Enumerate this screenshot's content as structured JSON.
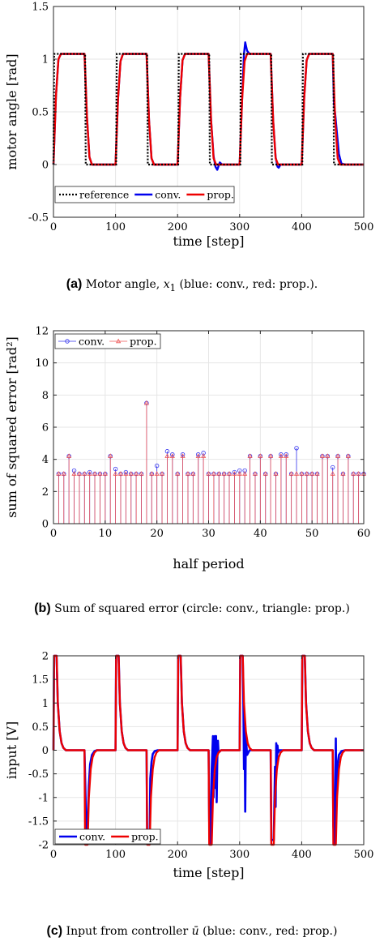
{
  "charts": [
    {
      "id": "a",
      "chart_data": {
        "type": "line",
        "xlabel": "time [step]",
        "ylabel": "motor angle [rad]",
        "xlim": [
          0,
          500
        ],
        "ylim": [
          -0.5,
          1.5
        ],
        "xticks": [
          0,
          100,
          200,
          300,
          400,
          500
        ],
        "yticks": [
          -0.5,
          0,
          0.5,
          1,
          1.5
        ],
        "grid": true,
        "legend_position": "bottom-left",
        "series": [
          {
            "name": "reference",
            "color": "#000000",
            "style": "dotted",
            "x": [
              0,
              1,
              2,
              51,
              52,
              101,
              102,
              151,
              152,
              201,
              202,
              251,
              252,
              301,
              302,
              351,
              352,
              401,
              402,
              451,
              452,
              500
            ],
            "y": [
              0,
              1.05,
              1.05,
              1.05,
              0,
              0,
              1.05,
              1.05,
              0,
              0,
              1.05,
              1.05,
              0,
              0,
              1.05,
              1.05,
              0,
              0,
              1.05,
              1.05,
              0,
              0
            ]
          },
          {
            "name": "conv.",
            "color": "#0000ee",
            "style": "solid",
            "x": [
              0,
              4,
              8,
              12,
              50,
              54,
              58,
              62,
              70,
              100,
              104,
              108,
              112,
              150,
              154,
              158,
              162,
              200,
              204,
              208,
              212,
              250,
              254,
              258,
              261,
              264,
              268,
              272,
              300,
              304,
              307,
              309,
              312,
              316,
              350,
              354,
              358,
              361,
              363,
              366,
              400,
              404,
              408,
              412,
              450,
              452,
              454,
              456,
              460,
              464,
              470,
              500
            ],
            "y": [
              0,
              0.65,
              1.0,
              1.05,
              1.05,
              0.45,
              0.07,
              0,
              0,
              0,
              0.62,
              0.98,
              1.05,
              1.05,
              0.42,
              0.06,
              0,
              0,
              0.63,
              0.99,
              1.05,
              1.05,
              0.42,
              0.08,
              -0.02,
              -0.05,
              0.02,
              0,
              0,
              0.62,
              1.05,
              1.16,
              1.08,
              1.05,
              1.05,
              0.42,
              0.07,
              -0.02,
              -0.03,
              0,
              0,
              0.63,
              0.99,
              1.05,
              1.05,
              0.58,
              0.48,
              0.35,
              0.1,
              0.01,
              0,
              0
            ]
          },
          {
            "name": "prop.",
            "color": "#ee0000",
            "style": "solid",
            "x": [
              0,
              4,
              8,
              12,
              50,
              54,
              58,
              62,
              70,
              100,
              104,
              108,
              112,
              150,
              154,
              158,
              162,
              200,
              204,
              208,
              212,
              250,
              254,
              258,
              262,
              300,
              304,
              308,
              312,
              350,
              354,
              358,
              362,
              400,
              404,
              408,
              412,
              450,
              454,
              458,
              462,
              500
            ],
            "y": [
              0,
              0.65,
              1.0,
              1.05,
              1.05,
              0.45,
              0.07,
              0,
              0,
              0,
              0.62,
              0.98,
              1.05,
              1.05,
              0.42,
              0.06,
              0,
              0,
              0.63,
              0.99,
              1.05,
              1.05,
              0.42,
              0.06,
              0,
              0,
              0.62,
              0.98,
              1.05,
              1.05,
              0.42,
              0.06,
              0,
              0,
              0.63,
              0.99,
              1.05,
              1.05,
              0.42,
              0.06,
              0,
              0
            ]
          }
        ]
      },
      "caption": {
        "label": "(a)",
        "text_before": "Motor angle,",
        "math_var": "x",
        "math_sub": "1",
        "text_after": "(blue: conv., red: prop.)."
      }
    },
    {
      "id": "b",
      "chart_data": {
        "type": "stem",
        "xlabel": "half period",
        "ylabel": "sum of squared error [rad²]",
        "xlim": [
          0,
          60
        ],
        "ylim": [
          0,
          12
        ],
        "xticks": [
          0,
          10,
          20,
          30,
          40,
          50,
          60
        ],
        "yticks": [
          0,
          2,
          4,
          6,
          8,
          10,
          12
        ],
        "grid": true,
        "legend_position": "top-left",
        "x": [
          1,
          2,
          3,
          4,
          5,
          6,
          7,
          8,
          9,
          10,
          11,
          12,
          13,
          14,
          15,
          16,
          17,
          18,
          19,
          20,
          21,
          22,
          23,
          24,
          25,
          26,
          27,
          28,
          29,
          30,
          31,
          32,
          33,
          34,
          35,
          36,
          37,
          38,
          39,
          40,
          41,
          42,
          43,
          44,
          45,
          46,
          47,
          48,
          49,
          50,
          51,
          52,
          53,
          54,
          55,
          56,
          57,
          58,
          59,
          60
        ],
        "series": [
          {
            "name": "conv.",
            "color": "#3333ee",
            "marker": "circle",
            "values": [
              3.1,
              3.1,
              4.2,
              3.3,
              3.1,
              3.1,
              3.2,
              3.1,
              3.1,
              3.1,
              4.2,
              3.4,
              3.1,
              3.2,
              3.1,
              3.1,
              3.1,
              7.5,
              3.1,
              3.6,
              3.1,
              4.5,
              4.3,
              3.1,
              4.3,
              3.1,
              3.1,
              4.3,
              4.4,
              3.1,
              3.1,
              3.1,
              3.1,
              3.1,
              3.2,
              3.3,
              3.3,
              4.2,
              3.1,
              4.2,
              3.1,
              4.2,
              3.1,
              4.3,
              4.3,
              3.1,
              4.7,
              3.1,
              3.1,
              3.1,
              3.1,
              4.2,
              4.2,
              3.5,
              4.2,
              3.1,
              4.2,
              3.1,
              3.1,
              3.1
            ]
          },
          {
            "name": "prop.",
            "color": "#ee5555",
            "marker": "triangle",
            "values": [
              3.1,
              3.1,
              4.2,
              3.1,
              3.1,
              3.1,
              3.1,
              3.1,
              3.1,
              3.1,
              4.2,
              3.1,
              3.1,
              3.1,
              3.1,
              3.1,
              3.1,
              7.5,
              3.1,
              3.1,
              3.1,
              4.2,
              4.2,
              3.1,
              4.2,
              3.1,
              3.1,
              4.2,
              4.2,
              3.1,
              3.1,
              3.1,
              3.1,
              3.1,
              3.1,
              3.1,
              3.1,
              4.2,
              3.1,
              4.2,
              3.1,
              4.2,
              3.1,
              4.2,
              4.2,
              3.1,
              3.1,
              3.1,
              3.1,
              3.1,
              3.1,
              4.2,
              4.2,
              3.1,
              4.2,
              3.1,
              4.2,
              3.1,
              3.1,
              3.1
            ]
          }
        ]
      },
      "caption": {
        "label": "(b)",
        "text": "Sum of squared error (circle: conv., triangle: prop.)"
      }
    },
    {
      "id": "c",
      "chart_data": {
        "type": "line",
        "xlabel": "time [step]",
        "ylabel": "input [V]",
        "xlim": [
          0,
          500
        ],
        "ylim": [
          -2,
          2
        ],
        "xticks": [
          0,
          100,
          200,
          300,
          400,
          500
        ],
        "yticks": [
          -2,
          -1.5,
          -1,
          -0.5,
          0,
          0.5,
          1,
          1.5,
          2
        ],
        "grid": true,
        "legend_position": "bottom-left",
        "series": [
          {
            "name": "conv.",
            "color": "#0000ee",
            "x": [
              0,
              1,
              5,
              7,
              10,
              13,
              16,
              20,
              50,
              51,
              53,
              55,
              57,
              59,
              62,
              66,
              70,
              100,
              101,
              105,
              107,
              110,
              113,
              116,
              120,
              150,
              151,
              155,
              156,
              158,
              160,
              163,
              168,
              200,
              201,
              205,
              207,
              210,
              213,
              216,
              220,
              250,
              251,
              253,
              255,
              257,
              258,
              259,
              260,
              261,
              262,
              263,
              264,
              265,
              266,
              270,
              300,
              301,
              305,
              306,
              307,
              308,
              309,
              310,
              312,
              316,
              350,
              351,
              355,
              357,
              358,
              359,
              360,
              361,
              362,
              364,
              370,
              400,
              401,
              405,
              407,
              410,
              413,
              416,
              420,
              450,
              451,
              453,
              455,
              456,
              457,
              458,
              460,
              464,
              470,
              500
            ],
            "y": [
              0,
              2,
              2,
              1.0,
              0.4,
              0.15,
              0.05,
              0,
              0,
              -0.6,
              -1.65,
              -1.65,
              -0.75,
              -0.3,
              -0.1,
              -0.02,
              0,
              0,
              2,
              2,
              1.0,
              0.4,
              0.15,
              0.05,
              0,
              0,
              -1.9,
              -1.9,
              -0.6,
              -0.25,
              -0.08,
              -0.02,
              0,
              0,
              2,
              2,
              1.0,
              0.4,
              0.15,
              0.05,
              0,
              0,
              -1.5,
              -2.0,
              -0.4,
              0.3,
              -1.0,
              -0.3,
              0.3,
              -0.8,
              0.3,
              -1.1,
              -0.2,
              0.2,
              -0.05,
              0,
              0,
              2,
              2,
              1.0,
              -0.4,
              0.55,
              -1.3,
              0.3,
              -0.1,
              0,
              0,
              -1.9,
              -1.9,
              -0.35,
              -1.2,
              0.15,
              -0.4,
              0.1,
              -0.05,
              0,
              0,
              0,
              2,
              2,
              1.0,
              0.4,
              0.15,
              0.05,
              0,
              0,
              -1.6,
              -2.0,
              0.25,
              -1.2,
              -0.5,
              -0.3,
              -0.1,
              -0.02,
              0,
              0
            ]
          },
          {
            "name": "prop.",
            "color": "#ee0000",
            "x": [
              0,
              1,
              5,
              7,
              10,
              13,
              16,
              20,
              50,
              51,
              55,
              57,
              60,
              63,
              66,
              70,
              100,
              101,
              105,
              107,
              110,
              113,
              116,
              120,
              150,
              151,
              155,
              157,
              160,
              163,
              166,
              170,
              200,
              201,
              205,
              207,
              210,
              213,
              216,
              220,
              250,
              251,
              255,
              257,
              260,
              263,
              266,
              270,
              300,
              301,
              305,
              307,
              310,
              313,
              316,
              320,
              350,
              351,
              355,
              357,
              360,
              363,
              366,
              370,
              400,
              401,
              405,
              407,
              410,
              413,
              416,
              420,
              450,
              451,
              455,
              457,
              460,
              463,
              466,
              470,
              500
            ],
            "y": [
              0,
              2,
              2,
              1.0,
              0.4,
              0.15,
              0.05,
              0,
              0,
              -2,
              -2,
              -1.0,
              -0.4,
              -0.15,
              -0.05,
              0,
              0,
              2,
              2,
              1.0,
              0.4,
              0.15,
              0.05,
              0,
              0,
              -2,
              -2,
              -1.0,
              -0.4,
              -0.15,
              -0.05,
              0,
              0,
              2,
              2,
              1.0,
              0.4,
              0.15,
              0.05,
              0,
              0,
              -2,
              -2,
              -1.0,
              -0.4,
              -0.15,
              -0.05,
              0,
              0,
              2,
              2,
              1.0,
              0.4,
              0.15,
              0.05,
              0,
              0,
              -2,
              -2,
              -1.0,
              -0.4,
              -0.15,
              -0.05,
              0,
              0,
              2,
              2,
              1.0,
              0.4,
              0.15,
              0.05,
              0,
              0,
              -2,
              -2,
              -1.0,
              -0.4,
              -0.15,
              -0.05,
              0,
              0
            ]
          }
        ]
      },
      "caption": {
        "label": "(c)",
        "text_before": "Input from controller",
        "math_var": "ū",
        "text_after": "(blue: conv., red: prop.)"
      }
    }
  ]
}
